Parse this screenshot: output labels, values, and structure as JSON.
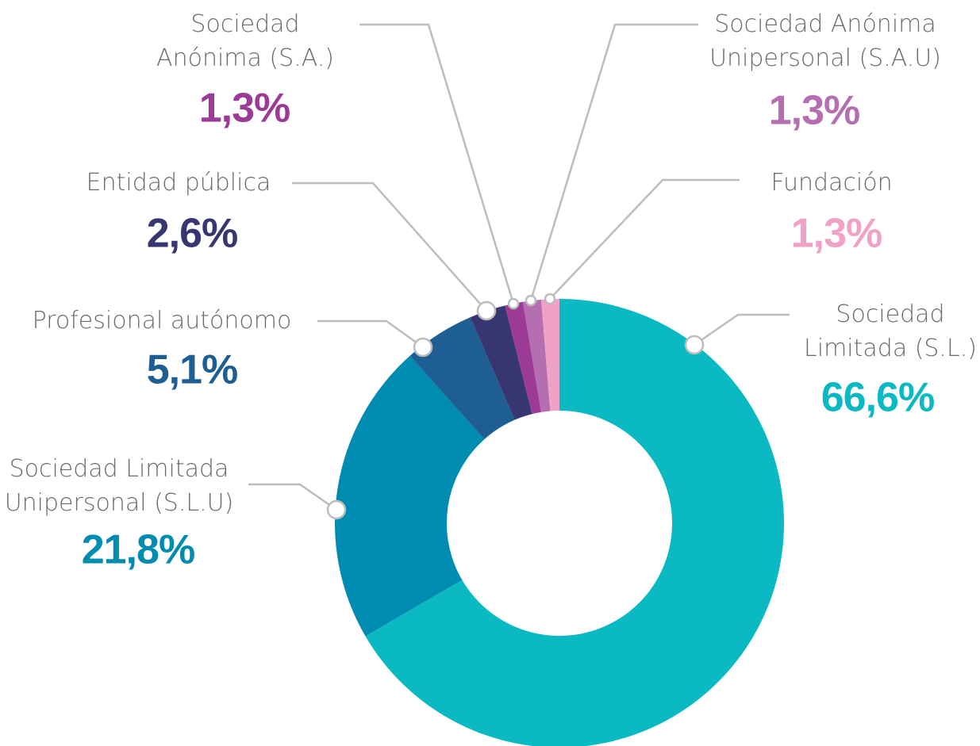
{
  "chart_data": {
    "type": "donut",
    "categories": [
      "Sociedad Limitada (S.L.)",
      "Sociedad Limitada Unipersonal (S.L.U)",
      "Profesional autónomo",
      "Entidad pública",
      "Sociedad Anónima (S.A.)",
      "Sociedad Anónima Unipersonal (S.A.U)",
      "Fundación"
    ],
    "values": [
      66.6,
      21.8,
      5.1,
      2.6,
      1.3,
      1.3,
      1.3
    ],
    "value_labels": [
      "66,6%",
      "21,8%",
      "5,1%",
      "2,6%",
      "1,3%",
      "1,3%",
      "1,3%"
    ],
    "colors": [
      "#0ab9c1",
      "#008bb0",
      "#1f5e92",
      "#383670",
      "#9b3b96",
      "#b56fb0",
      "#f0a2c6"
    ]
  }
}
